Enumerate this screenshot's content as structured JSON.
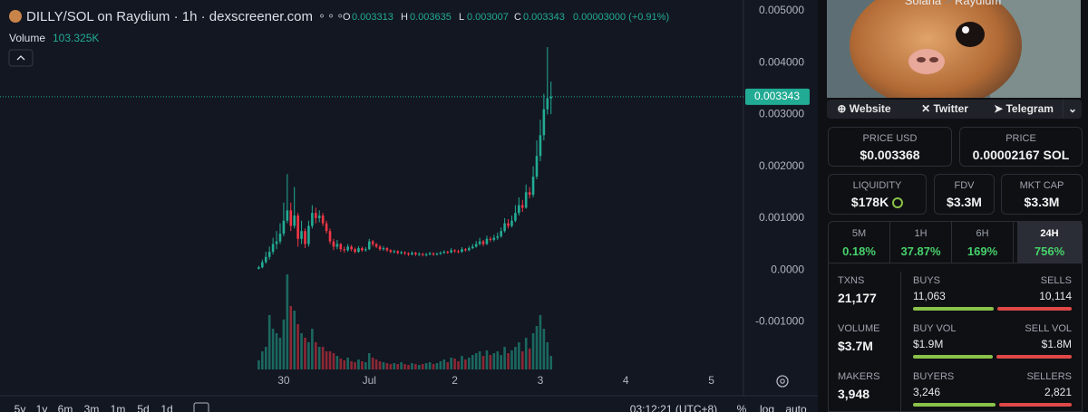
{
  "header": {
    "title": "DILLY/SOL on Raydium · 1h · dexscreener.com",
    "ohlc_labels": [
      "O",
      "H",
      "L",
      "C"
    ],
    "change": "0.00003000 (+0.91%)",
    "volume_label": "Volume",
    "volume_value": "103.325K"
  },
  "chart_data": {
    "type": "candlestick",
    "up_color": "#22ab94",
    "down_color": "#f23645",
    "x": [
      -7,
      -6,
      -5,
      -4,
      -3,
      -2,
      -1,
      0,
      1,
      2,
      3,
      4,
      5,
      6,
      7,
      8,
      9,
      10,
      11,
      12,
      13,
      14,
      15,
      16,
      17,
      18,
      19,
      20,
      21,
      22,
      23,
      24,
      25,
      26,
      27,
      28,
      29,
      30,
      31,
      32,
      33,
      34,
      35,
      36,
      37,
      38,
      39,
      40,
      41,
      42,
      43,
      44,
      45,
      46,
      47,
      48,
      49,
      50,
      51,
      52,
      53,
      54,
      55,
      56,
      57,
      58,
      59,
      60,
      61,
      62,
      63,
      64,
      65,
      66,
      67,
      68,
      69,
      70,
      71,
      72,
      73,
      74,
      75
    ],
    "open": [
      2e-05,
      5e-05,
      0.00015,
      0.00025,
      0.00035,
      0.0005,
      0.00055,
      0.0007,
      0.00095,
      0.00115,
      0.00085,
      0.00105,
      0.0006,
      0.00075,
      0.0005,
      0.00085,
      0.0011,
      0.001,
      0.00105,
      0.0009,
      0.00075,
      0.00055,
      0.00045,
      0.0005,
      0.0004,
      0.00038,
      0.00045,
      0.0004,
      0.00035,
      0.00042,
      0.00038,
      0.0004,
      0.00055,
      0.0005,
      0.00045,
      0.0004,
      0.00042,
      0.00038,
      0.00035,
      0.00036,
      0.00033,
      0.00034,
      0.00032,
      0.0003,
      0.00033,
      0.0003,
      0.00031,
      0.00029,
      0.0003,
      0.00032,
      0.0003,
      0.00031,
      0.00033,
      0.00035,
      0.00034,
      0.00038,
      0.00036,
      0.00035,
      0.0004,
      0.00038,
      0.00042,
      0.00045,
      0.0005,
      0.00055,
      0.0005,
      0.0006,
      0.00058,
      0.00062,
      0.00065,
      0.00075,
      0.0009,
      0.00085,
      0.00095,
      0.0011,
      0.00125,
      0.0012,
      0.0015,
      0.00145,
      0.0018,
      0.0022,
      0.0026,
      0.0031,
      0.003313
    ],
    "high": [
      8e-05,
      0.0002,
      0.00035,
      0.00045,
      0.00062,
      0.00075,
      0.0009,
      0.0013,
      0.00185,
      0.0013,
      0.0016,
      0.0011,
      0.00095,
      0.0008,
      0.00095,
      0.00125,
      0.0012,
      0.00115,
      0.0011,
      0.00095,
      0.0008,
      0.0006,
      0.00058,
      0.00052,
      0.00045,
      0.0005,
      0.00048,
      0.00043,
      0.00046,
      0.00045,
      0.00044,
      0.0006,
      0.00058,
      0.00052,
      0.00048,
      0.00046,
      0.00044,
      0.0004,
      0.00039,
      0.00038,
      0.00037,
      0.00036,
      0.00034,
      0.00036,
      0.00035,
      0.00034,
      0.00033,
      0.00033,
      0.00035,
      0.00034,
      0.00034,
      0.00036,
      0.00038,
      0.00037,
      0.00042,
      0.0004,
      0.00039,
      0.00044,
      0.00042,
      0.00046,
      0.0005,
      0.00056,
      0.00062,
      0.00058,
      0.00066,
      0.00064,
      0.00068,
      0.00072,
      0.00082,
      0.001,
      0.00098,
      0.00105,
      0.00125,
      0.0014,
      0.00135,
      0.00165,
      0.0016,
      0.002,
      0.0025,
      0.0029,
      0.0034,
      0.0043,
      0.003635
    ],
    "low": [
      1e-05,
      3e-05,
      0.00012,
      0.0002,
      0.0003,
      0.0004,
      0.0005,
      0.00065,
      0.0009,
      0.00075,
      0.0008,
      0.00045,
      0.0005,
      0.00042,
      0.00045,
      0.0008,
      0.0009,
      0.00092,
      0.00085,
      0.0007,
      0.0005,
      0.00038,
      0.0004,
      0.00035,
      0.00033,
      0.00035,
      0.00036,
      0.00032,
      0.00033,
      0.00035,
      0.00035,
      0.00038,
      0.00045,
      0.00042,
      0.00037,
      0.00037,
      0.00035,
      0.00032,
      0.00032,
      0.0003,
      0.0003,
      0.00029,
      0.00027,
      0.00028,
      0.00027,
      0.00027,
      0.00026,
      0.00026,
      0.00028,
      0.00027,
      0.00028,
      0.00029,
      0.00031,
      0.00031,
      0.00032,
      0.00033,
      0.00032,
      0.00033,
      0.00035,
      0.00036,
      0.0004,
      0.00043,
      0.00047,
      0.00046,
      0.00048,
      0.00054,
      0.00055,
      0.00058,
      0.00062,
      0.00072,
      0.0008,
      0.00082,
      0.00092,
      0.00105,
      0.00112,
      0.00118,
      0.00138,
      0.0014,
      0.00175,
      0.0021,
      0.0025,
      0.003,
      0.003007
    ],
    "close": [
      5e-05,
      0.00015,
      0.00025,
      0.00035,
      0.0005,
      0.00055,
      0.0007,
      0.00095,
      0.00115,
      0.00085,
      0.00105,
      0.0006,
      0.00075,
      0.0005,
      0.00085,
      0.0011,
      0.001,
      0.00105,
      0.0009,
      0.00075,
      0.00055,
      0.00045,
      0.0005,
      0.0004,
      0.00038,
      0.00045,
      0.0004,
      0.00035,
      0.00042,
      0.00038,
      0.0004,
      0.00055,
      0.0005,
      0.00045,
      0.0004,
      0.00042,
      0.00038,
      0.00035,
      0.00036,
      0.00033,
      0.00034,
      0.00032,
      0.0003,
      0.00033,
      0.0003,
      0.00031,
      0.00029,
      0.0003,
      0.00032,
      0.0003,
      0.00031,
      0.00033,
      0.00035,
      0.00034,
      0.00038,
      0.00036,
      0.00035,
      0.0004,
      0.00038,
      0.00042,
      0.00045,
      0.0005,
      0.00055,
      0.0005,
      0.0006,
      0.00058,
      0.00062,
      0.00065,
      0.00075,
      0.0009,
      0.00085,
      0.00095,
      0.0011,
      0.00125,
      0.0012,
      0.0015,
      0.00145,
      0.0018,
      0.0022,
      0.0026,
      0.0031,
      0.003313,
      0.003343
    ],
    "volume": [
      69000,
      138000,
      172000,
      414000,
      310000,
      276000,
      241000,
      380000,
      724000,
      483000,
      448000,
      345000,
      276000,
      241000,
      207000,
      310000,
      207000,
      172000,
      172000,
      138000,
      138000,
      124000,
      103000,
      83000,
      69000,
      90000,
      62000,
      55000,
      76000,
      62000,
      55000,
      124000,
      90000,
      76000,
      62000,
      55000,
      48000,
      41000,
      48000,
      41000,
      55000,
      41000,
      34000,
      48000,
      41000,
      34000,
      41000,
      48000,
      55000,
      41000,
      48000,
      62000,
      76000,
      55000,
      90000,
      83000,
      62000,
      103000,
      76000,
      90000,
      110000,
      124000,
      138000,
      103000,
      145000,
      110000,
      124000,
      138000,
      110000,
      172000,
      124000,
      145000,
      172000,
      207000,
      138000,
      241000,
      159000,
      276000,
      331000,
      414000,
      310000,
      207000,
      103325
    ],
    "xlim": [
      -79.6,
      129
    ],
    "xticks": [
      {
        "value": 0,
        "label": "30"
      },
      {
        "value": 24,
        "label": "Jul"
      },
      {
        "value": 48,
        "label": "2"
      },
      {
        "value": 72,
        "label": "3"
      },
      {
        "value": 96,
        "label": "4"
      },
      {
        "value": 120,
        "label": "5"
      }
    ],
    "ylim": [
      -0.00248,
      0.00521
    ],
    "yticks": [
      {
        "value": 0.005,
        "label": "0.005000"
      },
      {
        "value": 0.004,
        "label": "0.004000"
      },
      {
        "value": 0.003,
        "label": "0.003000"
      },
      {
        "value": 0.002,
        "label": "0.002000"
      },
      {
        "value": 0.001,
        "label": "0.001000"
      },
      {
        "value": 0,
        "label": "0.0000"
      },
      {
        "value": -0.001,
        "label": "-0.001000"
      }
    ],
    "grid": false
  },
  "toolbar": {
    "ranges": [
      "5y",
      "1y",
      "6m",
      "3m",
      "1m",
      "5d",
      "1d"
    ],
    "time": "03:12:21 (UTC+8)",
    "options": [
      "%",
      "log",
      "auto"
    ]
  },
  "panel": {
    "breadcrumb": [
      "Solana",
      "Raydium"
    ],
    "links": [
      "Website",
      "Twitter",
      "Telegram"
    ],
    "price_usd": {
      "label": "PRICE USD",
      "value": "$0.003368"
    },
    "price": {
      "label": "PRICE",
      "value": "0.00002167 SOL"
    },
    "stats": [
      {
        "label": "LIQUIDITY",
        "value": "$178K"
      },
      {
        "label": "FDV",
        "value": "$3.3M"
      },
      {
        "label": "MKT CAP",
        "value": "$3.3M"
      }
    ],
    "tabs": [
      {
        "label": "5M",
        "value": "0.18%"
      },
      {
        "label": "1H",
        "value": "37.87%"
      },
      {
        "label": "6H",
        "value": "169%"
      },
      {
        "label": "24H",
        "value": "756%"
      }
    ],
    "rows": [
      {
        "label": "TXNS",
        "value": "21,177",
        "left": {
          "label": "BUYS",
          "value": 11063,
          "value_label": "11,063"
        },
        "right": {
          "label": "SELLS",
          "value": 10114,
          "value_label": "10,114"
        }
      },
      {
        "label": "VOLUME",
        "value": "$3.7M",
        "left": {
          "label": "BUY VOL",
          "value": 1900000,
          "value_label": "$1.9M"
        },
        "right": {
          "label": "SELL VOL",
          "value": 1800000,
          "value_label": "$1.8M"
        }
      },
      {
        "label": "MAKERS",
        "value": "3,948",
        "left": {
          "label": "BUYERS",
          "value": 3246,
          "value_label": "3,246"
        },
        "right": {
          "label": "SELLERS",
          "value": 2821,
          "value_label": "2,821"
        }
      }
    ]
  }
}
